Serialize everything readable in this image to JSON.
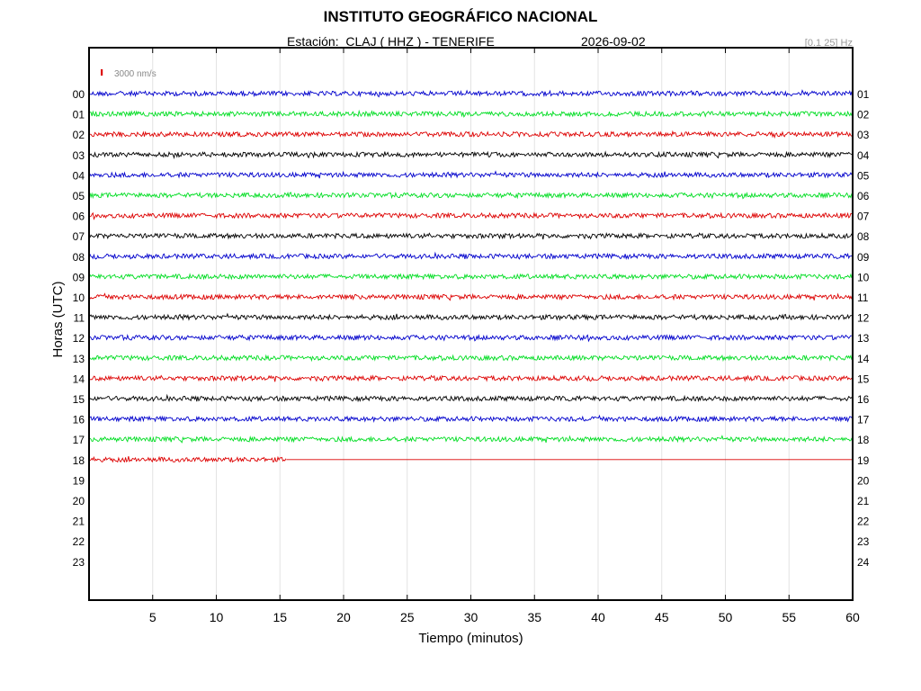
{
  "header": {
    "title": "INSTITUTO GEOGRÁFICO NACIONAL",
    "station_text": "Estación:  CLAJ ( HHZ ) - TENERIFE",
    "date": "2026-09-02",
    "filter": "[0.1 25] Hz"
  },
  "chart_data": {
    "type": "line",
    "subtype": "helicorder",
    "xlabel": "Tiempo (minutos)",
    "ylabel": "Horas (UTC)",
    "xlim": [
      0,
      60
    ],
    "x_ticks": [
      5,
      10,
      15,
      20,
      25,
      30,
      35,
      40,
      45,
      50,
      55,
      60
    ],
    "grid": true,
    "scale_label": "3000 nm/s",
    "left_hour_labels": [
      "00",
      "01",
      "02",
      "03",
      "04",
      "05",
      "06",
      "07",
      "08",
      "09",
      "10",
      "11",
      "12",
      "13",
      "14",
      "15",
      "16",
      "17",
      "18",
      "19",
      "20",
      "21",
      "22",
      "23"
    ],
    "right_hour_labels": [
      "01",
      "02",
      "03",
      "04",
      "05",
      "06",
      "07",
      "08",
      "09",
      "10",
      "11",
      "12",
      "13",
      "14",
      "15",
      "16",
      "17",
      "18",
      "19",
      "20",
      "21",
      "22",
      "23",
      "24"
    ],
    "trace_color_cycle": [
      "#0000cc",
      "#00dd22",
      "#dd0000",
      "#000000"
    ],
    "scale_color": "#dd0000",
    "traces": [
      {
        "hour": "00",
        "recorded_minutes": 60
      },
      {
        "hour": "01",
        "recorded_minutes": 60
      },
      {
        "hour": "02",
        "recorded_minutes": 60
      },
      {
        "hour": "03",
        "recorded_minutes": 60
      },
      {
        "hour": "04",
        "recorded_minutes": 60
      },
      {
        "hour": "05",
        "recorded_minutes": 60
      },
      {
        "hour": "06",
        "recorded_minutes": 60
      },
      {
        "hour": "07",
        "recorded_minutes": 60
      },
      {
        "hour": "08",
        "recorded_minutes": 60
      },
      {
        "hour": "09",
        "recorded_minutes": 60
      },
      {
        "hour": "10",
        "recorded_minutes": 60
      },
      {
        "hour": "11",
        "recorded_minutes": 60
      },
      {
        "hour": "12",
        "recorded_minutes": 60
      },
      {
        "hour": "13",
        "recorded_minutes": 60
      },
      {
        "hour": "14",
        "recorded_minutes": 60
      },
      {
        "hour": "15",
        "recorded_minutes": 60
      },
      {
        "hour": "16",
        "recorded_minutes": 60
      },
      {
        "hour": "17",
        "recorded_minutes": 60
      },
      {
        "hour": "18",
        "recorded_minutes": 15.5
      }
    ]
  }
}
